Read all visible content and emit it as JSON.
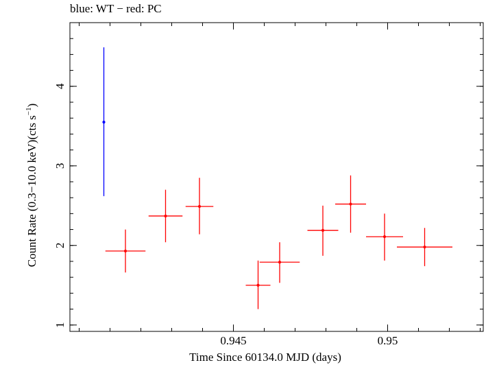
{
  "chart_data": {
    "type": "scatter",
    "title": "blue: WT − red: PC",
    "xlabel": "Time Since 60134.0 MJD (days)",
    "ylabel": "Count Rate (0.3−10.0 keV)(cts s",
    "ylabel_unit_exponent": "−1",
    "ylabel_close": ")",
    "xlim": [
      0.9397,
      0.9531
    ],
    "ylim": [
      0.92,
      4.8
    ],
    "x_ticks": [
      {
        "value": 0.945,
        "label": "0.945"
      },
      {
        "value": 0.95,
        "label": "0.95"
      }
    ],
    "y_ticks": [
      {
        "value": 1,
        "label": "1"
      },
      {
        "value": 2,
        "label": "2"
      },
      {
        "value": 3,
        "label": "3"
      },
      {
        "value": 4,
        "label": "4"
      }
    ],
    "x_minor_step": 0.001,
    "y_minor_step": 0.2,
    "series": [
      {
        "color": "#0000ff",
        "points": [
          {
            "x": 0.9408,
            "xerr": 0.0,
            "y": 3.55,
            "ylo": 2.62,
            "yhi": 4.49
          }
        ]
      },
      {
        "color": "#ff0000",
        "points": [
          {
            "x": 0.9415,
            "xerr": 0.00065,
            "y": 1.93,
            "ylo": 1.66,
            "yhi": 2.2
          },
          {
            "x": 0.9428,
            "xerr": 0.00055,
            "y": 2.37,
            "ylo": 2.04,
            "yhi": 2.7
          },
          {
            "x": 0.9439,
            "xerr": 0.00045,
            "y": 2.49,
            "ylo": 2.14,
            "yhi": 2.85
          },
          {
            "x": 0.9458,
            "xerr": 0.0004,
            "y": 1.5,
            "ylo": 1.2,
            "yhi": 1.81
          },
          {
            "x": 0.9465,
            "xerr": 0.00065,
            "y": 1.79,
            "ylo": 1.53,
            "yhi": 2.04
          },
          {
            "x": 0.9479,
            "xerr": 0.0005,
            "y": 2.19,
            "ylo": 1.87,
            "yhi": 2.5
          },
          {
            "x": 0.9488,
            "xerr": 0.0005,
            "y": 2.52,
            "ylo": 2.16,
            "yhi": 2.88
          },
          {
            "x": 0.9499,
            "xerr": 0.0006,
            "y": 2.11,
            "ylo": 1.81,
            "yhi": 2.4
          },
          {
            "x": 0.9512,
            "xerr": 0.0009,
            "y": 1.98,
            "ylo": 1.74,
            "yhi": 2.22
          }
        ]
      }
    ],
    "grid": false,
    "legend": "none"
  }
}
